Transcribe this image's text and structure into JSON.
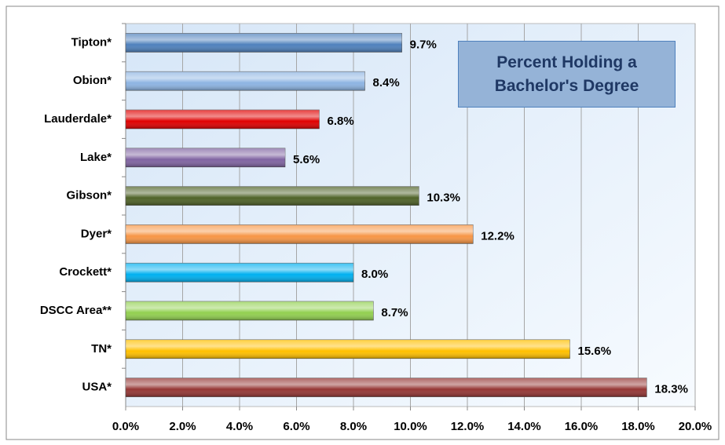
{
  "chart_data": {
    "type": "barh",
    "title": "Percent Holding a Bachelor's Degree",
    "categories": [
      "Tipton*",
      "Obion*",
      "Lauderdale*",
      "Lake*",
      "Gibson*",
      "Dyer*",
      "Crockett*",
      "DSCC Area**",
      "TN*",
      "USA*"
    ],
    "values": [
      9.7,
      8.4,
      6.8,
      5.6,
      10.3,
      12.2,
      8.0,
      8.7,
      15.6,
      18.3
    ],
    "value_labels": [
      "9.7%",
      "8.4%",
      "6.8%",
      "5.6%",
      "10.3%",
      "12.2%",
      "8.0%",
      "8.7%",
      "15.6%",
      "18.3%"
    ],
    "colors": [
      "#4f81bd",
      "#8db4e2",
      "#e00000",
      "#8064a2",
      "#4f6228",
      "#f79646",
      "#00b0f0",
      "#92d050",
      "#ffc000",
      "#953735"
    ],
    "xlim": [
      0,
      20
    ],
    "xticks": [
      {
        "value": 0,
        "label": "0.0%"
      },
      {
        "value": 2,
        "label": "2.0%"
      },
      {
        "value": 4,
        "label": "4.0%"
      },
      {
        "value": 6,
        "label": "6.0%"
      },
      {
        "value": 8,
        "label": "8.0%"
      },
      {
        "value": 10,
        "label": "10.0%"
      },
      {
        "value": 12,
        "label": "12.0%"
      },
      {
        "value": 14,
        "label": "14.0%"
      },
      {
        "value": 16,
        "label": "16.0%"
      },
      {
        "value": 18,
        "label": "18.0%"
      },
      {
        "value": 20,
        "label": "20.0%"
      }
    ],
    "grid": true
  }
}
